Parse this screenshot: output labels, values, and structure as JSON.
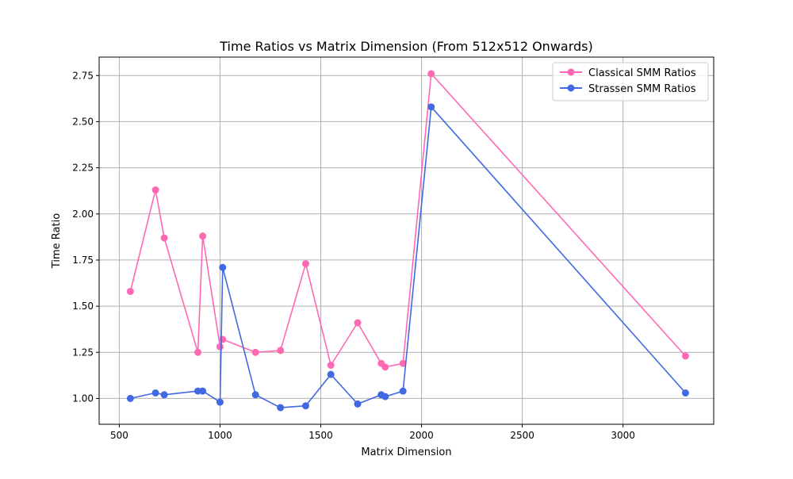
{
  "chart_data": {
    "type": "line",
    "title": "Time Ratios vs Matrix Dimension (From 512x512 Onwards)",
    "xlabel": "Matrix Dimension",
    "ylabel": "Time Ratio",
    "xlim": [
      400,
      3450
    ],
    "ylim": [
      0.86,
      2.85
    ],
    "xticks": [
      500,
      1000,
      1500,
      2000,
      2500,
      3000
    ],
    "xtick_labels": [
      "500",
      "1000",
      "1500",
      "2000",
      "2500",
      "3000"
    ],
    "yticks": [
      1.0,
      1.25,
      1.5,
      1.75,
      2.0,
      2.25,
      2.5,
      2.75
    ],
    "ytick_labels": [
      "1.00",
      "1.25",
      "1.50",
      "1.75",
      "2.00",
      "2.25",
      "2.50",
      "2.75"
    ],
    "grid": true,
    "legend_position": "top-right",
    "x": [
      555,
      680,
      723,
      890,
      914,
      1000,
      1013,
      1176,
      1300,
      1425,
      1550,
      1683,
      1800,
      1820,
      1908,
      2048,
      3310
    ],
    "series": [
      {
        "name": "Classical SMM Ratios",
        "color": "#ff69b4",
        "values": [
          1.58,
          2.13,
          1.87,
          1.25,
          1.88,
          1.28,
          1.32,
          1.25,
          1.26,
          1.73,
          1.18,
          1.41,
          1.19,
          1.17,
          1.19,
          2.76,
          1.23
        ]
      },
      {
        "name": "Strassen SMM Ratios",
        "color": "#4169e1",
        "values": [
          1.0,
          1.03,
          1.02,
          1.04,
          1.04,
          0.98,
          1.71,
          1.02,
          0.95,
          0.96,
          1.13,
          0.97,
          1.02,
          1.01,
          1.04,
          2.58,
          1.03
        ]
      }
    ]
  }
}
